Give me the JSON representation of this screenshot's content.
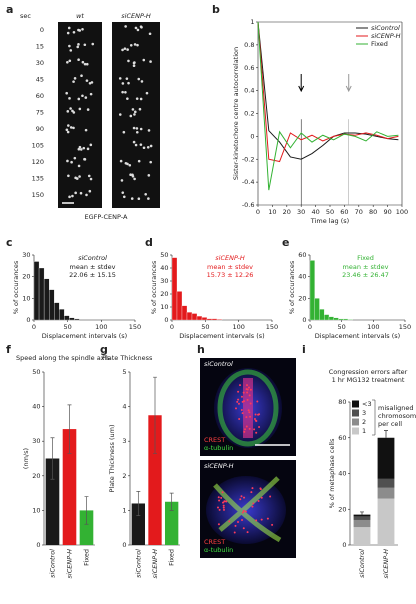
{
  "panel_labels": [
    "a",
    "b",
    "c",
    "d",
    "e",
    "f",
    "g",
    "h",
    "i"
  ],
  "kymograph": {
    "time_header": "sec",
    "columns": [
      "wt",
      "siCENP-H"
    ],
    "times": [
      "0",
      "15",
      "30",
      "45",
      "60",
      "75",
      "90",
      "105",
      "120",
      "135",
      "150"
    ],
    "caption": "EGFP-CENP-A"
  },
  "images": {
    "top_label": "siControl",
    "bottom_label": "siCENP-H",
    "stain_1": "CREST",
    "stain_2": "α-tubulin"
  },
  "chart_data": [
    {
      "type": "line",
      "x_label": "Time lag (s)",
      "y_label": "Sister-kinetochore centre autocorrelation",
      "x": [
        0,
        7.5,
        15,
        22.5,
        30,
        37.5,
        45,
        52.5,
        60,
        67.5,
        75,
        82.5,
        90,
        97.5
      ],
      "xlim": [
        0,
        100
      ],
      "xticks": [
        0,
        10,
        20,
        30,
        40,
        50,
        60,
        70,
        80,
        90,
        100
      ],
      "ylim": [
        -0.6,
        1
      ],
      "yticks": [
        -0.6,
        -0.4,
        -0.2,
        0,
        0.2,
        0.4,
        0.6,
        0.8,
        1
      ],
      "series": [
        {
          "name": "siControl",
          "color": "#1a1a1a",
          "values": [
            1,
            0.05,
            -0.05,
            -0.18,
            -0.2,
            -0.15,
            -0.08,
            0.0,
            0.03,
            0.03,
            0.02,
            0.0,
            -0.02,
            -0.03
          ]
        },
        {
          "name": "siCENP-H",
          "color": "#e31a1c",
          "values": [
            1,
            -0.2,
            -0.22,
            0.03,
            -0.03,
            0.01,
            -0.04,
            0.0,
            0.02,
            0.01,
            0.03,
            0.01,
            -0.02,
            0.0
          ]
        },
        {
          "name": "Fixed",
          "color": "#33b233",
          "values": [
            1,
            -0.47,
            0.04,
            -0.1,
            0.03,
            -0.05,
            0.01,
            -0.03,
            0.02,
            0.0,
            -0.04,
            0.04,
            0.0,
            0.01
          ]
        }
      ],
      "reference_lines": [
        {
          "x": 30,
          "color": "#000000"
        },
        {
          "x": 63,
          "color": "#999999"
        }
      ]
    },
    {
      "type": "histogram",
      "name": "siControl",
      "stat_label": "mean ± stdev",
      "stat": "22.06 ± 15.15",
      "color": "#1a1a1a",
      "x_label": "Displacement intervals (s)",
      "y_label": "% of occurances",
      "bins": [
        0,
        7.5,
        15,
        22.5,
        30,
        37.5,
        45,
        52.5,
        60,
        67.5
      ],
      "values": [
        27,
        24,
        19,
        14,
        8,
        5,
        2,
        1,
        0.5
      ],
      "xlim": [
        0,
        150
      ],
      "xticks": [
        0,
        50,
        100,
        150
      ],
      "ylim": [
        0,
        30
      ],
      "yticks": [
        0,
        10,
        20,
        30
      ]
    },
    {
      "type": "histogram",
      "name": "siCENP-H",
      "stat_label": "mean ± stdev",
      "stat": "15.73 ± 12.26",
      "color": "#e31a1c",
      "x_label": "Displacement intervals (s)",
      "y_label": "% of occurances",
      "bins": [
        0,
        7.5,
        15,
        22.5,
        30,
        37.5,
        45,
        52.5,
        60,
        67.5,
        75
      ],
      "values": [
        48,
        22,
        11,
        6,
        5,
        3,
        2,
        1,
        1,
        0.5
      ],
      "xlim": [
        0,
        150
      ],
      "xticks": [
        0,
        50,
        100,
        150
      ],
      "ylim": [
        0,
        50
      ],
      "yticks": [
        0,
        10,
        20,
        30,
        40,
        50
      ]
    },
    {
      "type": "histogram",
      "name": "Fixed",
      "stat_label": "mean ± stdev",
      "stat": "23.46 ± 26.47",
      "color": "#33b233",
      "x_label": "Displacement intervals (s)",
      "y_label": "% of occurances",
      "bins": [
        0,
        7.5,
        15,
        22.5,
        30,
        37.5,
        45,
        52.5,
        60,
        67.5
      ],
      "values": [
        55,
        20,
        10,
        5,
        3,
        2,
        1,
        1,
        0.5
      ],
      "xlim": [
        0,
        150
      ],
      "xticks": [
        0,
        50,
        100,
        150
      ],
      "ylim": [
        0,
        60
      ],
      "yticks": [
        0,
        20,
        40,
        60
      ]
    },
    {
      "type": "bar",
      "title": "Speed along the spindle axis",
      "y_label": "(nm/s)",
      "categories": [
        "siControl",
        "siCENP-H",
        "Fixed"
      ],
      "colors": [
        "#1a1a1a",
        "#e31a1c",
        "#33b233"
      ],
      "values": [
        25,
        33.5,
        10
      ],
      "errors": [
        6,
        7,
        4
      ],
      "ylim": [
        0,
        50
      ],
      "yticks": [
        0,
        10,
        20,
        30,
        40,
        50
      ]
    },
    {
      "type": "bar",
      "title": "Plate Thickness",
      "y_label": "Plate Thickness (um)",
      "categories": [
        "siControl",
        "siCENP-H",
        "Fixed"
      ],
      "colors": [
        "#1a1a1a",
        "#e31a1c",
        "#33b233"
      ],
      "values": [
        1.2,
        3.75,
        1.25
      ],
      "errors": [
        0.35,
        1.1,
        0.25
      ],
      "ylim": [
        0,
        5
      ],
      "yticks": [
        0,
        1,
        2,
        3,
        4,
        5
      ]
    },
    {
      "type": "stacked_bar",
      "title": [
        "Congression errors after",
        "1 hr MG132 treatment"
      ],
      "y_label": "% of metaphase cells",
      "categories": [
        "siControl",
        "siCENP-H"
      ],
      "series": [
        {
          "name": "1",
          "color": "#c8c8c8",
          "values": [
            10,
            26
          ]
        },
        {
          "name": "2",
          "color": "#8c8c8c",
          "values": [
            4,
            6
          ]
        },
        {
          "name": "3",
          "color": "#505050",
          "values": [
            2,
            5
          ]
        },
        {
          "name": "<3",
          "color": "#111111",
          "values": [
            1,
            23
          ]
        }
      ],
      "errors": [
        1.5,
        4
      ],
      "legend_note": [
        "misaligned",
        "chromosomes",
        "per cell"
      ],
      "ylim": [
        0,
        80
      ],
      "yticks": [
        0,
        20,
        40,
        60,
        80
      ]
    }
  ]
}
